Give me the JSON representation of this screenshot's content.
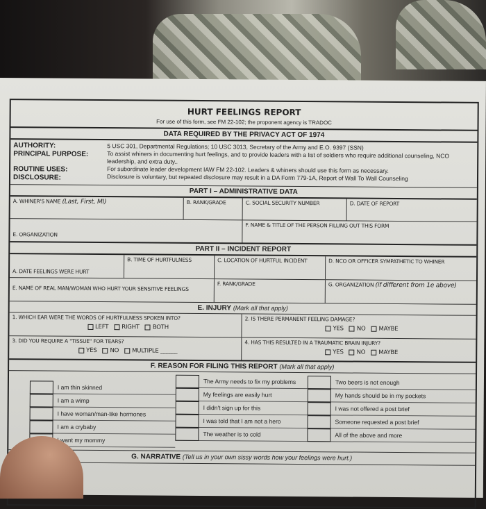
{
  "title": "HURT FEELINGS REPORT",
  "subtitle": "For use of this form, see FM 22-102; the proponent agency is TRADOC",
  "privacy": {
    "header": "DATA REQUIRED BY THE PRIVACY ACT OF 1974",
    "labels": [
      "AUTHORITY:",
      "PRINCIPAL PURPOSE:",
      "ROUTINE USES:",
      "DISCLOSURE:"
    ],
    "texts": [
      "5 USC 301, Departmental Regulations; 10 USC 3013, Secretary of the Army and E.O. 9397 (SSN)",
      "To assist whiners in documenting hurt feelings, and to provide leaders with a list of soldiers who require additional counseling, NCO leadership, and extra duty..",
      "For subordinate leader development IAW FM 22-102. Leaders & whiners should use this form as necessary.",
      "Disclosure is voluntary, but repeated disclosure may result in a DA Form 779-1A, Report of Wall To Wall Counseling"
    ]
  },
  "part1": {
    "header": "PART I – ADMINISTRATIVE DATA",
    "a": "A. WHINER'S NAME",
    "a_hint": "(Last, First, MI)",
    "b": "B. RANK/GRADE",
    "c": "C. SOCIAL SECURITY NUMBER",
    "d": "D. DATE OF REPORT",
    "e": "E. ORGANIZATION",
    "f": "F. NAME & TITLE OF THE PERSON FILLING OUT THIS FORM"
  },
  "part2": {
    "header": "PART II – INCIDENT REPORT",
    "a": "A. DATE FEELINGS WERE HURT",
    "b": "B. TIME OF HURTFULNESS",
    "c": "C. LOCATION OF HURTFUL INCIDENT",
    "d": "D. NCO OR OFFICER SYMPATHETIC TO WHINER",
    "e": "E. NAME OF REAL MAN/WOMAN WHO HURT YOUR SENSITIVE FEELINGS",
    "f": "F. RANK/GRADE",
    "g": "G. ORGANIZATION",
    "g_hint": "(if different from 1e above)"
  },
  "injury": {
    "header": "E. INJURY",
    "hint": "(Mark all that apply)",
    "q1": "1. WHICH EAR WERE THE WORDS OF HURTFULNESS SPOKEN INTO?",
    "q1_opts": [
      "LEFT",
      "RIGHT",
      "BOTH"
    ],
    "q2": "2. IS THERE PERMANENT FEELING DAMAGE?",
    "q2_opts": [
      "YES",
      "NO",
      "MAYBE"
    ],
    "q3": "3. DID YOU REQUIRE A \"TISSUE\" FOR TEARS?",
    "q3_opts": [
      "YES",
      "NO",
      "MULTIPLE ______"
    ],
    "q4": "4. HAS THIS RESULTED IN A TRAUMATIC BRAIN INJURY?",
    "q4_opts": [
      "YES",
      "NO",
      "MAYBE"
    ]
  },
  "reasons": {
    "header": "F. REASON FOR FILING THIS REPORT",
    "hint": "(Mark all that apply)",
    "col1": [
      "I am thin skinned",
      "I am a wimp",
      "I have woman/man-like hormones",
      "I am a crybaby",
      "I want my mommy"
    ],
    "col2": [
      "The Army needs to fix my problems",
      "My feelings are easily hurt",
      "I didn't sign up for this",
      "I was told that I am not a hero",
      "The weather is to cold"
    ],
    "col3": [
      "Two beers is not enough",
      "My hands should be in my pockets",
      "I was not offered a post brief",
      "Someone requested a post brief",
      "All of the above and more"
    ]
  },
  "narrative": {
    "header": "G. NARRATIVE",
    "hint": "(Tell us in your own sissy words how your feelings were hurt.)"
  }
}
